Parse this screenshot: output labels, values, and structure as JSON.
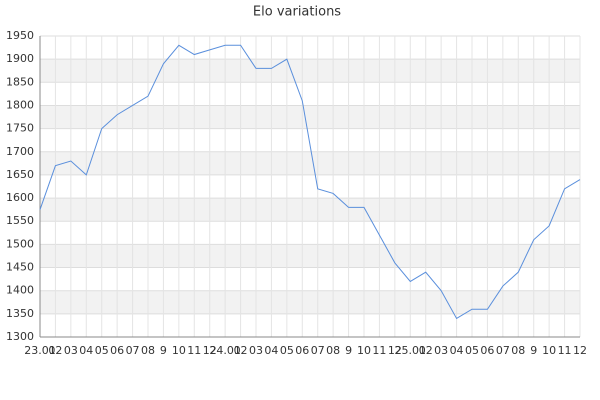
{
  "chart_data": {
    "type": "line",
    "title": "Elo variations",
    "categories": [
      "23.01",
      "02",
      "03",
      "04",
      "05",
      "06",
      "07",
      "08",
      "9",
      "10",
      "11",
      "12",
      "24.01",
      "02",
      "03",
      "04",
      "05",
      "06",
      "07",
      "08",
      "9",
      "10",
      "11",
      "12",
      "25.01",
      "02",
      "03",
      "04",
      "05",
      "06",
      "07",
      "08",
      "9",
      "10",
      "11",
      "12"
    ],
    "series": [
      {
        "color": "#5a8fdc",
        "values": [
          1575,
          1670,
          1680,
          1650,
          1750,
          1780,
          1800,
          1820,
          1890,
          1930,
          1910,
          1920,
          1930,
          1930,
          1880,
          1880,
          1900,
          1810,
          1620,
          1610,
          1580,
          1580,
          1520,
          1460,
          1420,
          1440,
          1400,
          1340,
          1360,
          1360,
          1410,
          1440,
          1510,
          1540,
          1620,
          1640
        ]
      }
    ],
    "ylim": [
      1300,
      1950
    ],
    "yticks": [
      1300,
      1350,
      1400,
      1450,
      1500,
      1550,
      1600,
      1650,
      1700,
      1750,
      1800,
      1850,
      1900,
      1950
    ],
    "grid": true
  }
}
